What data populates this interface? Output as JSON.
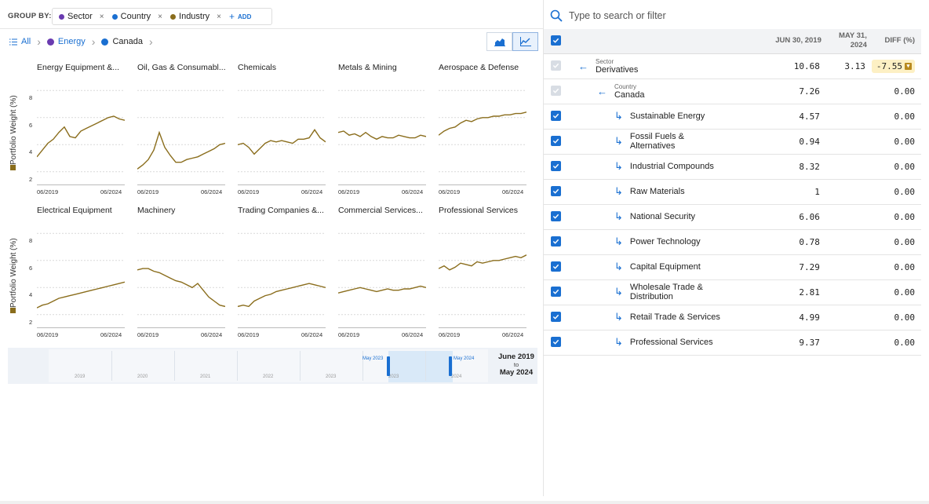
{
  "group_by": {
    "label": "GROUP BY:",
    "chips": [
      {
        "label": "Sector",
        "color": "#6a3bb0"
      },
      {
        "label": "Country",
        "color": "#1a6fd1"
      },
      {
        "label": "Industry",
        "color": "#8a6d1c"
      }
    ],
    "remove_glyph": "×",
    "add_label": "ADD"
  },
  "breadcrumb": {
    "items": [
      {
        "label": "All",
        "color": ""
      },
      {
        "label": "Energy",
        "color": "#6a3bb0"
      },
      {
        "label": "Canada",
        "color": "#1a6fd1"
      }
    ]
  },
  "view_toggle": {
    "options": [
      "area-chart",
      "line-chart"
    ],
    "selected": "line-chart"
  },
  "charts": {
    "ylabel": "Portfolio Weight (%)",
    "yticks": [
      "8",
      "6",
      "4",
      "2"
    ],
    "xticks": [
      "06/2019",
      "06/2024"
    ],
    "line_color": "#8a6d1c",
    "ylim": [
      1,
      9
    ],
    "rows": [
      [
        {
          "title": "Energy Equipment &...",
          "values": [
            3.1,
            3.6,
            4.1,
            4.4,
            4.9,
            5.3,
            4.6,
            4.5,
            5.0,
            5.2,
            5.4,
            5.6,
            5.8,
            6.0,
            6.1,
            5.9,
            5.8
          ]
        },
        {
          "title": "Oil, Gas & Consumabl...",
          "values": [
            2.2,
            2.5,
            2.9,
            3.6,
            4.9,
            3.8,
            3.2,
            2.7,
            2.7,
            2.9,
            3.0,
            3.1,
            3.3,
            3.5,
            3.7,
            4.0,
            4.1
          ]
        },
        {
          "title": "Chemicals",
          "values": [
            4.0,
            4.1,
            3.8,
            3.3,
            3.7,
            4.1,
            4.3,
            4.2,
            4.3,
            4.2,
            4.1,
            4.4,
            4.4,
            4.5,
            5.1,
            4.5,
            4.2
          ]
        },
        {
          "title": "Metals & Mining",
          "values": [
            4.9,
            5.0,
            4.7,
            4.8,
            4.6,
            4.9,
            4.6,
            4.4,
            4.6,
            4.5,
            4.5,
            4.7,
            4.6,
            4.5,
            4.5,
            4.7,
            4.6
          ]
        },
        {
          "title": "Aerospace & Defense",
          "values": [
            4.7,
            5.0,
            5.2,
            5.3,
            5.6,
            5.8,
            5.7,
            5.9,
            6.0,
            6.0,
            6.1,
            6.1,
            6.2,
            6.2,
            6.3,
            6.3,
            6.4
          ]
        }
      ],
      [
        {
          "title": "Electrical Equipment",
          "values": [
            2.5,
            2.7,
            2.8,
            3.0,
            3.2,
            3.3,
            3.4,
            3.5,
            3.6,
            3.7,
            3.8,
            3.9,
            4.0,
            4.1,
            4.2,
            4.3,
            4.4
          ]
        },
        {
          "title": "Machinery",
          "values": [
            5.3,
            5.4,
            5.4,
            5.2,
            5.1,
            4.9,
            4.7,
            4.5,
            4.4,
            4.2,
            4.0,
            4.3,
            3.8,
            3.3,
            3.0,
            2.7,
            2.6
          ]
        },
        {
          "title": "Trading Companies &...",
          "values": [
            2.6,
            2.7,
            2.6,
            3.0,
            3.2,
            3.4,
            3.5,
            3.7,
            3.8,
            3.9,
            4.0,
            4.1,
            4.2,
            4.3,
            4.2,
            4.1,
            4.0
          ]
        },
        {
          "title": "Commercial Services...",
          "values": [
            3.6,
            3.7,
            3.8,
            3.9,
            4.0,
            3.9,
            3.8,
            3.7,
            3.8,
            3.9,
            3.8,
            3.8,
            3.9,
            3.9,
            4.0,
            4.1,
            4.0
          ]
        },
        {
          "title": "Professional Services",
          "values": [
            5.4,
            5.6,
            5.3,
            5.5,
            5.8,
            5.7,
            5.6,
            5.9,
            5.8,
            5.9,
            6.0,
            6.0,
            6.1,
            6.2,
            6.3,
            6.2,
            6.4
          ]
        }
      ]
    ]
  },
  "timeline": {
    "years": [
      "2019",
      "2020",
      "2021",
      "2022",
      "2023",
      "2023",
      "2024"
    ],
    "start_handle": "May 2023",
    "end_handle": "May 2024",
    "range_start": "June 2019",
    "range_to": "to",
    "range_end": "May 2024"
  },
  "search": {
    "placeholder": "Type to search or filter"
  },
  "table": {
    "headers": [
      "JUN 30, 2019",
      "MAY 31, 2024",
      "DIFF (%)"
    ],
    "rows": [
      {
        "level": 0,
        "sublabel": "Sector",
        "label": "Derivatives",
        "v1": "10.68",
        "v2": "3.13",
        "diff": "-7.55",
        "diff_highlight": true,
        "checked": false
      },
      {
        "level": 1,
        "sublabel": "Country",
        "label": "Canada",
        "v1": "7.26",
        "v2": "",
        "diff": "0.00",
        "diff_highlight": false,
        "checked": false
      },
      {
        "level": 2,
        "sublabel": "",
        "label": "Sustainable Energy",
        "v1": "4.57",
        "v2": "",
        "diff": "0.00",
        "diff_highlight": false,
        "checked": true
      },
      {
        "level": 2,
        "sublabel": "",
        "label": "Fossil Fuels & Alternatives",
        "v1": "0.94",
        "v2": "",
        "diff": "0.00",
        "diff_highlight": false,
        "checked": true
      },
      {
        "level": 2,
        "sublabel": "",
        "label": "Industrial Compounds",
        "v1": "8.32",
        "v2": "",
        "diff": "0.00",
        "diff_highlight": false,
        "checked": true
      },
      {
        "level": 2,
        "sublabel": "",
        "label": "Raw Materials",
        "v1": "1",
        "v2": "",
        "diff": "0.00",
        "diff_highlight": false,
        "checked": true
      },
      {
        "level": 2,
        "sublabel": "",
        "label": "National Security",
        "v1": "6.06",
        "v2": "",
        "diff": "0.00",
        "diff_highlight": false,
        "checked": true
      },
      {
        "level": 2,
        "sublabel": "",
        "label": "Power Technology",
        "v1": "0.78",
        "v2": "",
        "diff": "0.00",
        "diff_highlight": false,
        "checked": true
      },
      {
        "level": 2,
        "sublabel": "",
        "label": "Capital Equipment",
        "v1": "7.29",
        "v2": "",
        "diff": "0.00",
        "diff_highlight": false,
        "checked": true
      },
      {
        "level": 2,
        "sublabel": "",
        "label": "Wholesale Trade & Distribution",
        "v1": "2.81",
        "v2": "",
        "diff": "0.00",
        "diff_highlight": false,
        "checked": true
      },
      {
        "level": 2,
        "sublabel": "",
        "label": "Retail Trade & Services",
        "v1": "4.99",
        "v2": "",
        "diff": "0.00",
        "diff_highlight": false,
        "checked": true
      },
      {
        "level": 2,
        "sublabel": "",
        "label": "Professional Services",
        "v1": "9.37",
        "v2": "",
        "diff": "0.00",
        "diff_highlight": false,
        "checked": true
      }
    ]
  }
}
